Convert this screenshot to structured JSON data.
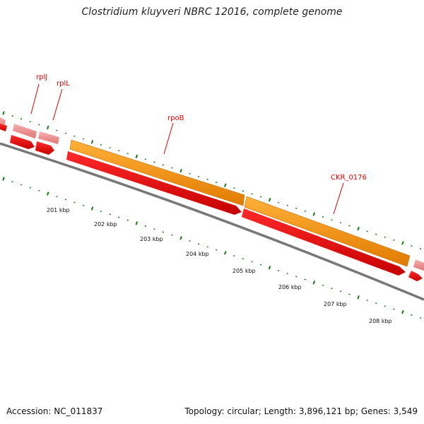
{
  "title": "Clostridium kluyveri NBRC 12016, complete genome",
  "accession_text": "Accession: NC_011837",
  "summary_text": "Topology: circular; Length: 3,896,121 bp; Genes: 3,549",
  "gene_labels": [
    {
      "name": "rplJ",
      "kind": "strand-feature"
    },
    {
      "name": "rplL",
      "kind": "strand-feature"
    },
    {
      "name": "rpoB",
      "kind": "strand-feature"
    },
    {
      "name": "CKR_0176",
      "kind": "strand-feature"
    }
  ],
  "scale_ticks": [
    "201 kbp",
    "202 kbp",
    "203 kbp",
    "204 kbp",
    "205 kbp",
    "206 kbp",
    "207 kbp",
    "208 kbp"
  ],
  "colors": {
    "gene_red": "#e50000",
    "gene_pink": "#ec8a8a",
    "cds_orange": "#f79400",
    "label_red": "#e00000",
    "tick_green": "#1a7a1a",
    "backbone_gray": "#777777"
  }
}
